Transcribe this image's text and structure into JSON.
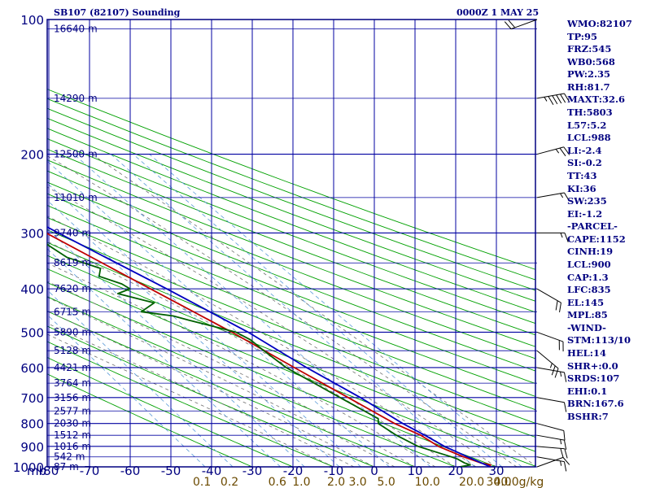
{
  "header": {
    "station": "SB107 (82107) Sounding",
    "time": "0000Z  1 MAY 25"
  },
  "indices": [
    "WMO:82107",
    "TP:95",
    "FRZ:545",
    "WB0:568",
    "PW:2.35",
    "RH:81.7",
    "MAXT:32.6",
    "TH:5803",
    "L57:5.2",
    "LCL:988",
    "LI:-2.4",
    "SI:-0.2",
    "TT:43",
    "KI:36",
    "SW:235",
    "EI:-1.2",
    "-PARCEL-",
    "CAPE:1152",
    "CINH:19",
    "LCL:900",
    "CAP:1.3",
    "LFC:835",
    "EL:145",
    "MPL:85",
    "-WIND-",
    "STM:113/10",
    "HEL:14",
    "SHR+:0.0",
    "SRDS:107",
    "EHI:0.1",
    "BRN:167.6",
    "BSHR:7"
  ],
  "colors": {
    "frame": "#000080",
    "grid": "#0000a0",
    "dry_adiabat": "#00a000",
    "moist_adiabat": "#707070",
    "mixing_ratio": "#5a9ad8",
    "temperature": "#c00000",
    "dewpoint": "#006000",
    "parcel": "#0000c0",
    "mixing_label": "#6b4a00"
  },
  "chart_data": {
    "type": "line",
    "title": "SB107 (82107) Sounding",
    "pressure_levels": [
      100,
      200,
      300,
      400,
      500,
      600,
      700,
      800,
      900,
      1000
    ],
    "pressure_unit": "mb",
    "temperature_ticks": [
      -80,
      -70,
      -60,
      -50,
      -40,
      -30,
      -20,
      -10,
      0,
      10,
      20,
      30
    ],
    "mixing_ratio_labels": [
      "0.1",
      "0.2",
      "0.6",
      "1.0",
      "2.0",
      "3.0",
      "5.0",
      "10.0",
      "20.0",
      "30.0",
      "40.0"
    ],
    "mixing_ratio_unit": "g/kg",
    "height_labels": [
      {
        "p": 105,
        "text": "16640 m"
      },
      {
        "p": 150,
        "text": "14290 m"
      },
      {
        "p": 200,
        "text": "12500 m"
      },
      {
        "p": 250,
        "text": "11010 m"
      },
      {
        "p": 300,
        "text": "9740 m"
      },
      {
        "p": 350,
        "text": "8619 m"
      },
      {
        "p": 400,
        "text": "7620 m"
      },
      {
        "p": 450,
        "text": "6715 m"
      },
      {
        "p": 500,
        "text": "5890 m"
      },
      {
        "p": 550,
        "text": "5128 m"
      },
      {
        "p": 600,
        "text": "4421 m"
      },
      {
        "p": 650,
        "text": "3764 m"
      },
      {
        "p": 700,
        "text": "3156 m"
      },
      {
        "p": 750,
        "text": "2577 m"
      },
      {
        "p": 800,
        "text": "2030 m"
      },
      {
        "p": 850,
        "text": "1512 m"
      },
      {
        "p": 900,
        "text": "1016 m"
      },
      {
        "p": 950,
        "text": "542 m"
      },
      {
        "p": 1000,
        "text": "87 m"
      }
    ],
    "series": [
      {
        "key": "temperature",
        "points": [
          [
            1000,
            28
          ],
          [
            990,
            29
          ],
          [
            980,
            27
          ],
          [
            950,
            24
          ],
          [
            900,
            20
          ],
          [
            850,
            18
          ],
          [
            800,
            14
          ],
          [
            700,
            8
          ],
          [
            600,
            1
          ],
          [
            500,
            -7
          ],
          [
            400,
            -18
          ],
          [
            300,
            -32
          ],
          [
            250,
            -41
          ],
          [
            200,
            -51
          ],
          [
            150,
            -63
          ],
          [
            100,
            -73
          ]
        ]
      },
      {
        "key": "dewpoint",
        "points": [
          [
            1000,
            21
          ],
          [
            990,
            24
          ],
          [
            980,
            23
          ],
          [
            960,
            22
          ],
          [
            950,
            21
          ],
          [
            900,
            15
          ],
          [
            850,
            12
          ],
          [
            800,
            10
          ],
          [
            780,
            11
          ],
          [
            700,
            6
          ],
          [
            600,
            -1
          ],
          [
            550,
            -3
          ],
          [
            520,
            -4
          ],
          [
            500,
            -6
          ],
          [
            470,
            -15
          ],
          [
            460,
            -18
          ],
          [
            450,
            -25
          ],
          [
            430,
            -20
          ],
          [
            410,
            -27
          ],
          [
            400,
            -23
          ],
          [
            390,
            -24
          ],
          [
            375,
            -28
          ],
          [
            360,
            -26
          ],
          [
            340,
            -32
          ],
          [
            320,
            -34
          ],
          [
            300,
            -35
          ],
          [
            290,
            -32
          ],
          [
            270,
            -42
          ],
          [
            240,
            -45
          ],
          [
            230,
            -47
          ],
          [
            220,
            -51
          ],
          [
            190,
            -62
          ],
          [
            170,
            -55
          ],
          [
            160,
            -60
          ],
          [
            145,
            -61
          ],
          [
            100,
            -73
          ]
        ]
      },
      {
        "key": "parcel",
        "points": [
          [
            1000,
            28.5
          ],
          [
            950,
            25
          ],
          [
            900,
            21.5
          ],
          [
            850,
            19
          ],
          [
            800,
            16
          ],
          [
            700,
            11
          ],
          [
            600,
            4
          ],
          [
            500,
            -3
          ],
          [
            400,
            -14
          ],
          [
            300,
            -29
          ],
          [
            250,
            -38
          ],
          [
            200,
            -49
          ],
          [
            150,
            -62
          ],
          [
            100,
            -73
          ]
        ]
      }
    ],
    "wind_barbs": [
      {
        "p": 100,
        "dir": 250,
        "kt": 20
      },
      {
        "p": 150,
        "dir": 80,
        "kt": 55
      },
      {
        "p": 200,
        "dir": 75,
        "kt": 25
      },
      {
        "p": 250,
        "dir": 80,
        "kt": 15
      },
      {
        "p": 300,
        "dir": 90,
        "kt": 15
      },
      {
        "p": 400,
        "dir": 120,
        "kt": 20
      },
      {
        "p": 500,
        "dir": 110,
        "kt": 20
      },
      {
        "p": 550,
        "dir": 130,
        "kt": 25
      },
      {
        "p": 600,
        "dir": 100,
        "kt": 15
      },
      {
        "p": 700,
        "dir": 100,
        "kt": 10
      },
      {
        "p": 800,
        "dir": 105,
        "kt": 10
      },
      {
        "p": 850,
        "dir": 100,
        "kt": 15
      },
      {
        "p": 900,
        "dir": 95,
        "kt": 20
      },
      {
        "p": 950,
        "dir": 100,
        "kt": 15
      },
      {
        "p": 1000,
        "dir": 70,
        "kt": 10
      }
    ]
  }
}
